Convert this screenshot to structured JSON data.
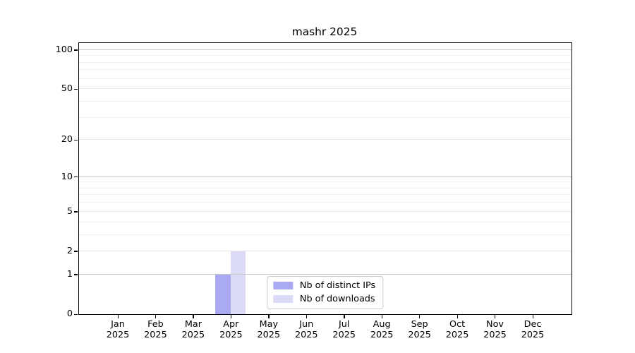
{
  "chart_data": {
    "type": "bar",
    "title": "mashr 2025",
    "categories": [
      "Jan",
      "Feb",
      "Mar",
      "Apr",
      "May",
      "Jun",
      "Jul",
      "Aug",
      "Sep",
      "Oct",
      "Nov",
      "Dec"
    ],
    "x_year": "2025",
    "series": [
      {
        "name": "Nb of distinct IPs",
        "color": "#aaaaf2",
        "values": [
          0,
          0,
          0,
          1,
          0,
          0,
          0,
          0,
          0,
          0,
          0,
          0
        ]
      },
      {
        "name": "Nb of downloads",
        "color": "#dbdbf8",
        "values": [
          0,
          0,
          0,
          2,
          0,
          0,
          0,
          0,
          0,
          0,
          0,
          0
        ]
      }
    ],
    "y_scale": "log1p",
    "ylim": [
      0,
      113
    ],
    "y_ticks": [
      0,
      1,
      2,
      5,
      10,
      20,
      50,
      100
    ],
    "y_major_gridline_values": [
      1,
      10,
      100
    ],
    "y_labeled_light_gridline_values": [
      2,
      5,
      20,
      50
    ],
    "y_minor_gridline_values": [
      3,
      4,
      6,
      7,
      8,
      9,
      30,
      40,
      60,
      70,
      80,
      90
    ],
    "grid": "horizontal",
    "legend_position": "lower center inside",
    "style": {
      "axis_color": "#000000",
      "grid_major_color": "#c4c4c4",
      "grid_minor_color": "#efefef",
      "grid_light_color": "#e7e7e7",
      "legend_border_color": "#cccccc",
      "background_color": "#ffffff"
    }
  }
}
